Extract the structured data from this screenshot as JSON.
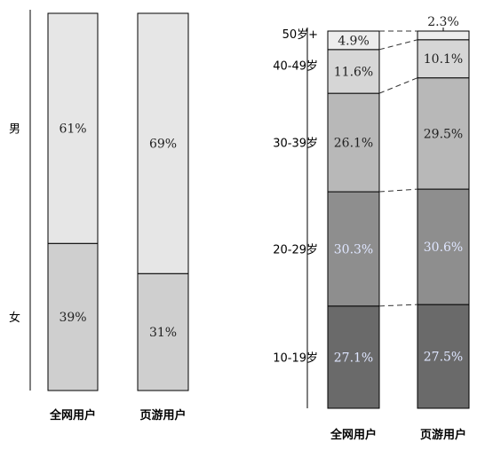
{
  "chart_data": [
    {
      "type": "bar",
      "stacked": true,
      "percent": true,
      "categories": [
        "全网用户",
        "页游用户"
      ],
      "series": [
        {
          "name": "女",
          "values": [
            39,
            31
          ],
          "labels": [
            "39%",
            "31%"
          ],
          "color": "#cfcfcf",
          "label_color": "#222222"
        },
        {
          "name": "男",
          "values": [
            61,
            69
          ],
          "labels": [
            "61%",
            "69%"
          ],
          "color": "#e6e6e6",
          "label_color": "#222222"
        }
      ],
      "ylim": [
        0,
        100
      ],
      "grid": false,
      "legend": "left-side labels"
    },
    {
      "type": "bar",
      "stacked": true,
      "percent": true,
      "categories": [
        "全网用户",
        "页游用户"
      ],
      "series": [
        {
          "name": "10-19岁",
          "values": [
            27.1,
            27.5
          ],
          "labels": [
            "27.1%",
            "27.5%"
          ],
          "color": "#6a6a6a",
          "label_color": "#dfe6ff"
        },
        {
          "name": "20-29岁",
          "values": [
            30.3,
            30.6
          ],
          "labels": [
            "30.3%",
            "30.6%"
          ],
          "color": "#8e8e8e",
          "label_color": "#dfe6ff"
        },
        {
          "name": "30-39岁",
          "values": [
            26.1,
            29.5
          ],
          "labels": [
            "26.1%",
            "29.5%"
          ],
          "color": "#b8b8b8",
          "label_color": "#222222"
        },
        {
          "name": "40-49岁",
          "values": [
            11.6,
            10.1
          ],
          "labels": [
            "11.6%",
            "10.1%"
          ],
          "color": "#d6d6d6",
          "label_color": "#222222"
        },
        {
          "name": "50岁+",
          "values": [
            4.9,
            2.3
          ],
          "labels": [
            "4.9%",
            "2.3%"
          ],
          "color": "#ededed",
          "label_color": "#222222"
        }
      ],
      "ylim": [
        0,
        100
      ],
      "grid": false,
      "legend": "left-side labels"
    }
  ]
}
